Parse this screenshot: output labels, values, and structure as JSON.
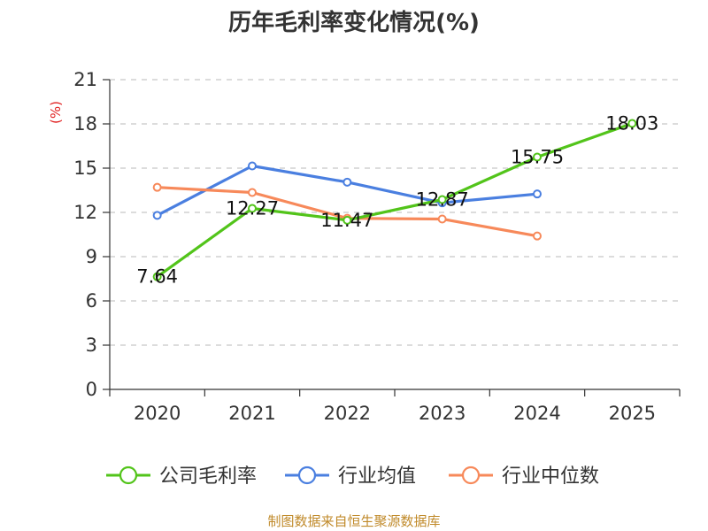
{
  "chart_data": {
    "type": "line",
    "title": "历年毛利率变化情况(%)",
    "ylabel": "(%)",
    "xlabel": "",
    "categories": [
      "2020",
      "2021",
      "2022",
      "2023",
      "2024",
      "2025"
    ],
    "ylim": [
      0,
      21
    ],
    "yticks": [
      0,
      3,
      6,
      9,
      12,
      15,
      18,
      21
    ],
    "grid": true,
    "legend_position": "bottom",
    "series": [
      {
        "name": "公司毛利率",
        "color": "#52c41a",
        "values": [
          7.64,
          12.27,
          11.47,
          12.87,
          15.75,
          18.03
        ],
        "labels": [
          "7.64",
          "12.27",
          "11.47",
          "12.87",
          "15.75",
          "18.03"
        ]
      },
      {
        "name": "行业均值",
        "color": "#4a7fe0",
        "values": [
          11.8,
          15.15,
          14.05,
          12.65,
          13.25,
          null
        ]
      },
      {
        "name": "行业中位数",
        "color": "#f7895a",
        "values": [
          13.7,
          13.35,
          11.6,
          11.55,
          10.4,
          null
        ]
      }
    ]
  },
  "footer": {
    "source": "制图数据来自恒生聚源数据库"
  }
}
